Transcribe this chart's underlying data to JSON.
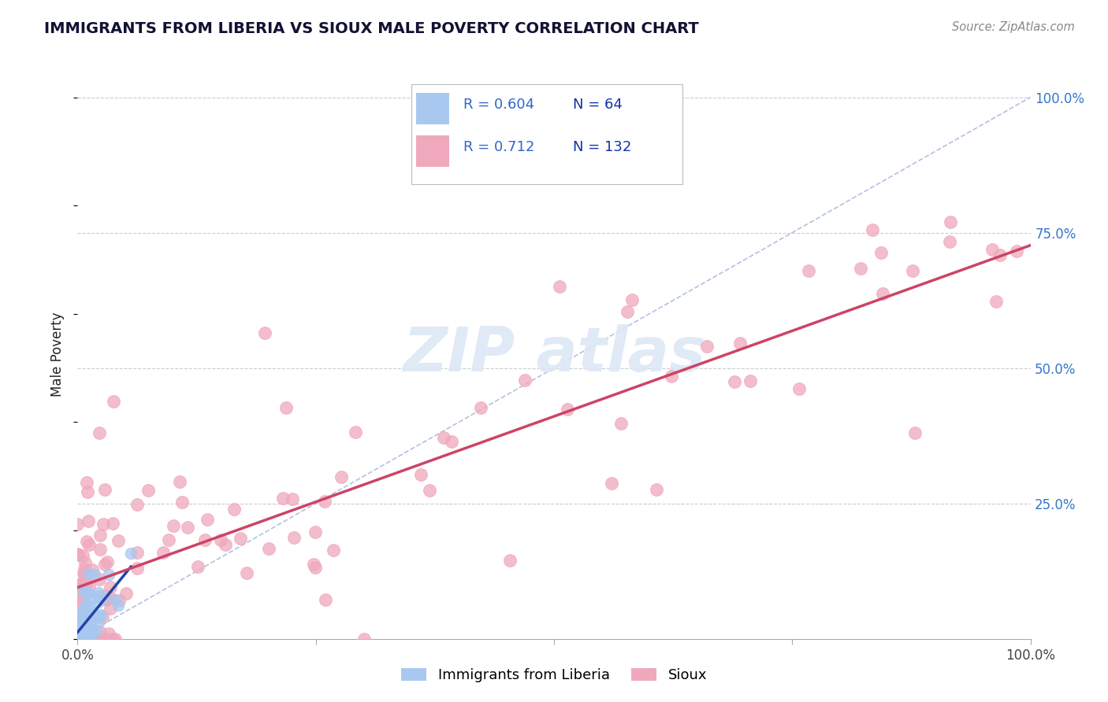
{
  "title": "IMMIGRANTS FROM LIBERIA VS SIOUX MALE POVERTY CORRELATION CHART",
  "source": "Source: ZipAtlas.com",
  "ylabel": "Male Poverty",
  "legend_blue_r": "0.604",
  "legend_blue_n": "64",
  "legend_pink_r": "0.712",
  "legend_pink_n": "132",
  "y_ticks": [
    "25.0%",
    "50.0%",
    "75.0%",
    "100.0%"
  ],
  "y_tick_vals": [
    0.25,
    0.5,
    0.75,
    1.0
  ],
  "blue_color": "#a8c8f0",
  "pink_color": "#f0a8bc",
  "blue_line_color": "#2244aa",
  "pink_line_color": "#cc4466",
  "diagonal_color": "#aabbdd",
  "watermark_color": "#dde8f5",
  "xlim": [
    0.0,
    1.0
  ],
  "ylim": [
    0.0,
    1.05
  ],
  "blue_r": 0.604,
  "pink_r": 0.712
}
